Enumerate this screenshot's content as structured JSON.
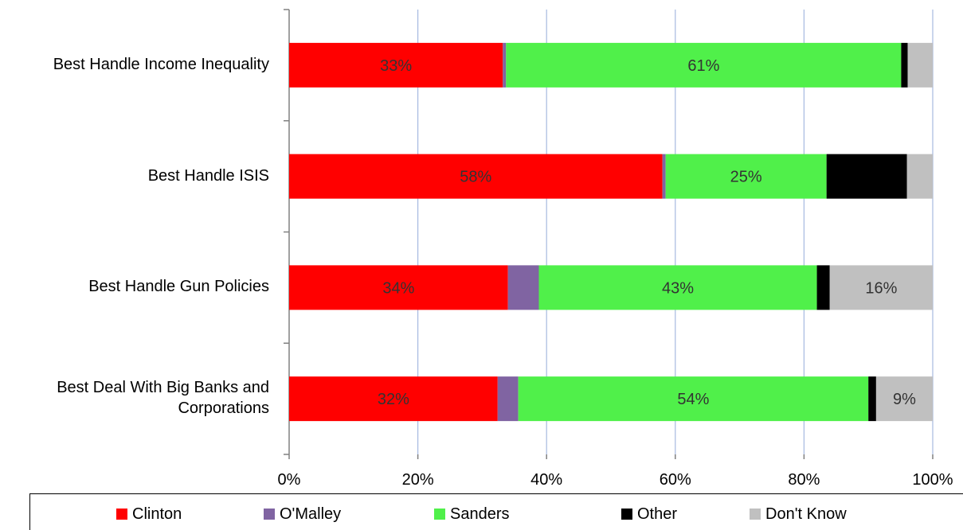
{
  "chart_data": {
    "type": "bar",
    "orientation": "horizontal",
    "stacked": true,
    "categories": [
      [
        "Best Handle Income Inequality"
      ],
      [
        "Best Handle ISIS"
      ],
      [
        "Best Handle Gun Policies"
      ],
      [
        "Best Deal With Big Banks and",
        "Corporations"
      ]
    ],
    "series": [
      {
        "name": "Clinton",
        "color": "#ff0000",
        "values": [
          33.2,
          58,
          34,
          32.4
        ],
        "labels": [
          "33%",
          "58%",
          "34%",
          "32%"
        ],
        "label_color": "#333333"
      },
      {
        "name": "O'Malley",
        "color": "#8064a2",
        "values": [
          0.5,
          0.5,
          4.8,
          3.2
        ],
        "labels": [
          "",
          "",
          "",
          ""
        ],
        "label_color": "#333333"
      },
      {
        "name": "Sanders",
        "color": "#50f04a",
        "values": [
          61.4,
          25,
          43.2,
          54.4
        ],
        "labels": [
          "61%",
          "25%",
          "43%",
          "54%"
        ],
        "label_color": "#333333"
      },
      {
        "name": "Other",
        "color": "#000000",
        "values": [
          1,
          12.5,
          2,
          1.2
        ],
        "labels": [
          "",
          "",
          "",
          ""
        ],
        "label_color": "#ffffff"
      },
      {
        "name": "Don't Know",
        "color": "#c0c0c0",
        "values": [
          3.9,
          4,
          16,
          8.8
        ],
        "labels": [
          "",
          "",
          "16%",
          "9%"
        ],
        "label_color": "#333333"
      }
    ],
    "x_ticks": [
      "0%",
      "20%",
      "40%",
      "60%",
      "80%",
      "100%"
    ],
    "xlim": [
      0,
      100
    ],
    "grid": true,
    "legend_position": "bottom"
  }
}
